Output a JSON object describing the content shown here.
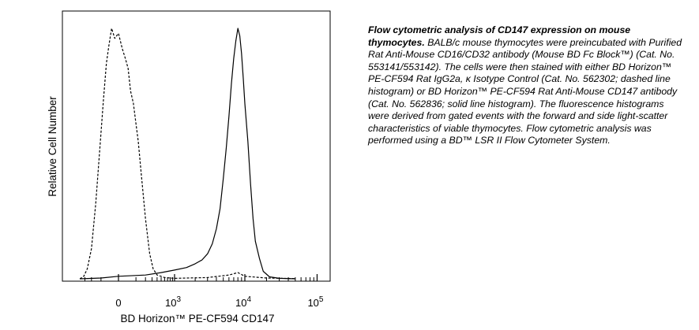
{
  "caption": {
    "title": "Flow cytometric analysis of CD147 expression on mouse thymocytes.",
    "body": "BALB/c mouse thymocytes were preincubated with Purified Rat Anti-Mouse CD16/CD32 antibody (Mouse BD Fc Block™) (Cat. No. 553141/553142). The cells were then stained with either BD Horizon™ PE-CF594 Rat IgG2a, κ Isotype Control (Cat. No. 562302; dashed line histogram) or BD Horizon™ PE-CF594 Rat Anti-Mouse CD147 antibody (Cat. No. 562836; solid line histogram). The fluorescence histograms were derived from gated events with the forward and side light-scatter characteristics of viable thymocytes. Flow cytometric analysis was performed using a BD™ LSR II Flow Cytometer System."
  },
  "chart_data": {
    "type": "line",
    "xlabel": "BD Horizon™ PE-CF594 CD147",
    "ylabel": "Relative Cell Number",
    "x_scale": "biexponential",
    "xlim": [
      -400,
      200000
    ],
    "x_ticks": [
      {
        "value": 0,
        "base": "0",
        "exp": ""
      },
      {
        "value": 1000,
        "base": "10",
        "exp": "3"
      },
      {
        "value": 10000,
        "base": "10",
        "exp": "4"
      },
      {
        "value": 100000,
        "base": "10",
        "exp": "5"
      }
    ],
    "ylim": [
      0,
      100
    ],
    "grid": false,
    "series": [
      {
        "line_style": "dashed",
        "points": [
          [
            -400,
            0
          ],
          [
            -320,
            1
          ],
          [
            -260,
            4
          ],
          [
            -200,
            12
          ],
          [
            -150,
            30
          ],
          [
            -110,
            52
          ],
          [
            -80,
            72
          ],
          [
            -60,
            86
          ],
          [
            -45,
            93
          ],
          [
            -30,
            100
          ],
          [
            -15,
            96
          ],
          [
            0,
            98
          ],
          [
            15,
            92
          ],
          [
            30,
            88
          ],
          [
            45,
            84
          ],
          [
            60,
            75
          ],
          [
            80,
            70
          ],
          [
            100,
            62
          ],
          [
            120,
            55
          ],
          [
            150,
            42
          ],
          [
            200,
            24
          ],
          [
            260,
            10
          ],
          [
            320,
            4
          ],
          [
            400,
            1.5
          ],
          [
            600,
            0.5
          ],
          [
            1000,
            0.2
          ],
          [
            3000,
            0.5
          ],
          [
            6000,
            1.5
          ],
          [
            8000,
            2.5
          ],
          [
            10000,
            1
          ],
          [
            20000,
            0.3
          ],
          [
            50000,
            0.1
          ]
        ]
      },
      {
        "line_style": "solid",
        "points": [
          [
            -400,
            0
          ],
          [
            -100,
            0.3
          ],
          [
            0,
            1
          ],
          [
            200,
            1.5
          ],
          [
            500,
            2.5
          ],
          [
            1000,
            3.5
          ],
          [
            1500,
            4.5
          ],
          [
            2000,
            6
          ],
          [
            2500,
            7.5
          ],
          [
            3000,
            10
          ],
          [
            3500,
            14
          ],
          [
            4000,
            20
          ],
          [
            4500,
            28
          ],
          [
            5000,
            40
          ],
          [
            5500,
            52
          ],
          [
            6000,
            65
          ],
          [
            6500,
            78
          ],
          [
            7000,
            88
          ],
          [
            7500,
            95
          ],
          [
            8000,
            100
          ],
          [
            8500,
            97
          ],
          [
            9000,
            90
          ],
          [
            9500,
            80
          ],
          [
            10000,
            70
          ],
          [
            11000,
            55
          ],
          [
            12000,
            38
          ],
          [
            13000,
            24
          ],
          [
            14000,
            15
          ],
          [
            16000,
            8
          ],
          [
            18000,
            3
          ],
          [
            22000,
            0.8
          ],
          [
            30000,
            0.2
          ],
          [
            50000,
            0
          ]
        ]
      }
    ]
  }
}
